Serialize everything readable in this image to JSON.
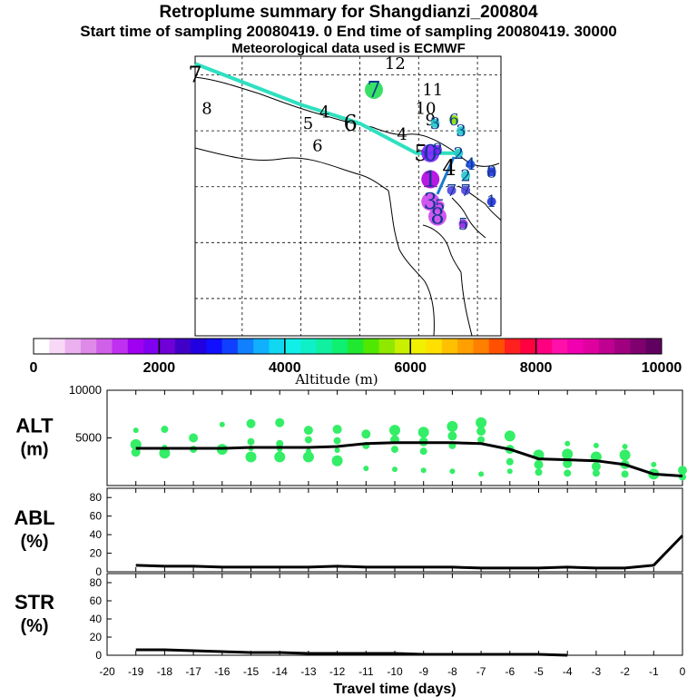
{
  "header": {
    "title": "Retroplume summary for Shangdianzi_200804",
    "subtitle": "Start time of sampling 20080419.    0     End time of sampling 20080419. 30000",
    "met_line": "Meteorological data used is ECMWF"
  },
  "colors": {
    "trajectory": "#2fe0c0",
    "trajectory_end": "#1a7ad0",
    "alt_dots": "#33ee66",
    "line": "#000000"
  },
  "chart_data": [
    {
      "type": "map",
      "title": "Retroplume trajectory map",
      "labels": [
        {
          "text": "7",
          "lon": -4.0,
          "lat": 6.0,
          "color": "#000000",
          "size": 2
        },
        {
          "text": "12",
          "lon": 4.5,
          "lat": 6.3,
          "color": "#000000",
          "size": 1
        },
        {
          "text": "7",
          "lon": 3.6,
          "lat": 5.6,
          "color": "#22dd55",
          "size": 2
        },
        {
          "text": "11",
          "lon": 6.1,
          "lat": 5.6,
          "color": "#000000",
          "size": 1
        },
        {
          "text": "8",
          "lon": -3.5,
          "lat": 5.1,
          "color": "#000000",
          "size": 1
        },
        {
          "text": "10",
          "lon": 5.8,
          "lat": 5.1,
          "color": "#000000",
          "size": 1
        },
        {
          "text": "4",
          "lon": 1.5,
          "lat": 5.0,
          "color": "#000000",
          "size": 1
        },
        {
          "text": "5",
          "lon": 0.8,
          "lat": 4.7,
          "color": "#000000",
          "size": 1
        },
        {
          "text": "6",
          "lon": 2.6,
          "lat": 4.7,
          "color": "#000000",
          "size": 2
        },
        {
          "text": "9",
          "lon": 6.0,
          "lat": 4.8,
          "color": "#000000",
          "size": 1
        },
        {
          "text": "3",
          "lon": 6.2,
          "lat": 4.7,
          "color": "#20c8c8",
          "size": 1
        },
        {
          "text": "6",
          "lon": 7.0,
          "lat": 4.8,
          "color": "#88dd00",
          "size": 1
        },
        {
          "text": "4",
          "lon": 4.8,
          "lat": 4.4,
          "color": "#000000",
          "size": 1
        },
        {
          "text": "3",
          "lon": 7.3,
          "lat": 4.5,
          "color": "#20c8c8",
          "size": 1
        },
        {
          "text": "6",
          "lon": 1.2,
          "lat": 4.1,
          "color": "#000000",
          "size": 1
        },
        {
          "text": "5",
          "lon": 5.6,
          "lat": 3.9,
          "color": "#000000",
          "size": 2
        },
        {
          "text": "0",
          "lon": 6.0,
          "lat": 3.9,
          "color": "#7b1fff",
          "size": 2
        },
        {
          "text": "8",
          "lon": 6.3,
          "lat": 4.0,
          "color": "#7b1fff",
          "size": 1
        },
        {
          "text": "2",
          "lon": 7.2,
          "lat": 3.9,
          "color": "#20c8c8",
          "size": 1
        },
        {
          "text": "4",
          "lon": 6.8,
          "lat": 3.5,
          "color": "#000000",
          "size": 2
        },
        {
          "text": "4",
          "lon": 7.7,
          "lat": 3.6,
          "color": "#2050ff",
          "size": 1
        },
        {
          "text": "2",
          "lon": 7.5,
          "lat": 3.3,
          "color": "#20c8c8",
          "size": 1
        },
        {
          "text": "8",
          "lon": 8.6,
          "lat": 3.4,
          "color": "#2030e0",
          "size": 1
        },
        {
          "text": "1",
          "lon": 6.0,
          "lat": 3.2,
          "color": "#b000e0",
          "size": 2
        },
        {
          "text": "7",
          "lon": 6.9,
          "lat": 2.9,
          "color": "#5040e0",
          "size": 1
        },
        {
          "text": "7",
          "lon": 7.5,
          "lat": 2.9,
          "color": "#5040e0",
          "size": 1
        },
        {
          "text": "3",
          "lon": 6.0,
          "lat": 2.6,
          "color": "#cc44ee",
          "size": 2
        },
        {
          "text": "5",
          "lon": 6.4,
          "lat": 2.5,
          "color": "#cc44ee",
          "size": 1
        },
        {
          "text": "1",
          "lon": 8.6,
          "lat": 2.6,
          "color": "#2030e0",
          "size": 1
        },
        {
          "text": "8",
          "lon": 6.3,
          "lat": 2.2,
          "color": "#cc44ee",
          "size": 2
        },
        {
          "text": "5",
          "lon": 7.4,
          "lat": 2.0,
          "color": "#9020e0",
          "size": 1
        }
      ],
      "trajectory": [
        {
          "lon": -4.0,
          "lat": 6.3
        },
        {
          "lon": 0.5,
          "lat": 5.2
        },
        {
          "lon": 3.0,
          "lat": 4.7
        },
        {
          "lon": 5.4,
          "lat": 3.9
        },
        {
          "lon": 6.6,
          "lat": 3.9
        },
        {
          "lon": 7.3,
          "lat": 3.9
        }
      ],
      "trajectory_tail": [
        {
          "lon": 7.0,
          "lat": 3.8
        },
        {
          "lon": 6.3,
          "lat": 2.8
        }
      ],
      "colorbar": {
        "label": "Altitude (m)",
        "min": 0,
        "max": 10000,
        "ticks": [
          0,
          2000,
          4000,
          6000,
          8000,
          10000
        ],
        "colors": [
          "#ffffff",
          "#f7d8f7",
          "#eab0f0",
          "#df8ae8",
          "#d060e8",
          "#c030f0",
          "#a000f0",
          "#8000f0",
          "#7000d8",
          "#4000c8",
          "#2000e0",
          "#1010ff",
          "#1040ff",
          "#1080ff",
          "#10b0ff",
          "#10d8f0",
          "#10f0e8",
          "#10f0c8",
          "#10f0a0",
          "#10f070",
          "#20e830",
          "#50e800",
          "#90e800",
          "#c8f000",
          "#f0f000",
          "#ffe000",
          "#ffc000",
          "#ffa000",
          "#ff8000",
          "#ff5000",
          "#ff2020",
          "#ff0040",
          "#ff0080",
          "#ff10a8",
          "#f000b0",
          "#e000a0",
          "#c00090",
          "#a00080",
          "#800070",
          "#600060"
        ]
      }
    },
    {
      "type": "scatter",
      "title": "ALT",
      "ylabel": [
        "ALT",
        "(m)"
      ],
      "x_range": [
        -20,
        0
      ],
      "ylim": [
        0,
        10000
      ],
      "yticks": [
        5000,
        10000
      ],
      "mean_line": {
        "x": [
          0,
          -1,
          -2,
          -3,
          -4,
          -5,
          -6,
          -7,
          -8,
          -9,
          -10,
          -11,
          -12,
          -13,
          -14,
          -15,
          -16,
          -17,
          -18,
          -19
        ],
        "y": [
          1000,
          1200,
          2200,
          2600,
          2700,
          2800,
          3800,
          4400,
          4500,
          4500,
          4500,
          4400,
          4100,
          4000,
          4000,
          4000,
          3900,
          3900,
          3900,
          3900
        ]
      },
      "points": [
        {
          "x": -19,
          "y": 5800
        },
        {
          "x": -19,
          "y": 4300
        },
        {
          "x": -19,
          "y": 3500
        },
        {
          "x": -18,
          "y": 5900
        },
        {
          "x": -18,
          "y": 4000
        },
        {
          "x": -18,
          "y": 3400
        },
        {
          "x": -17,
          "y": 5000
        },
        {
          "x": -17,
          "y": 3800
        },
        {
          "x": -16,
          "y": 6400
        },
        {
          "x": -16,
          "y": 3800
        },
        {
          "x": -15,
          "y": 6500
        },
        {
          "x": -15,
          "y": 4600
        },
        {
          "x": -15,
          "y": 3900
        },
        {
          "x": -15,
          "y": 3000
        },
        {
          "x": -14,
          "y": 6600
        },
        {
          "x": -14,
          "y": 4400
        },
        {
          "x": -14,
          "y": 3800
        },
        {
          "x": -14,
          "y": 3000
        },
        {
          "x": -13,
          "y": 5800
        },
        {
          "x": -13,
          "y": 4800
        },
        {
          "x": -13,
          "y": 3600
        },
        {
          "x": -13,
          "y": 3000
        },
        {
          "x": -12,
          "y": 5900
        },
        {
          "x": -12,
          "y": 4700
        },
        {
          "x": -12,
          "y": 3700
        },
        {
          "x": -12,
          "y": 2600
        },
        {
          "x": -11,
          "y": 5400
        },
        {
          "x": -11,
          "y": 4200
        },
        {
          "x": -11,
          "y": 1800
        },
        {
          "x": -10,
          "y": 5800
        },
        {
          "x": -10,
          "y": 4800
        },
        {
          "x": -10,
          "y": 3800
        },
        {
          "x": -10,
          "y": 1700
        },
        {
          "x": -9,
          "y": 5600
        },
        {
          "x": -9,
          "y": 4600
        },
        {
          "x": -9,
          "y": 3600
        },
        {
          "x": -9,
          "y": 1600
        },
        {
          "x": -8,
          "y": 6200
        },
        {
          "x": -8,
          "y": 5200
        },
        {
          "x": -8,
          "y": 4200
        },
        {
          "x": -8,
          "y": 1500
        },
        {
          "x": -7,
          "y": 6600
        },
        {
          "x": -7,
          "y": 5700
        },
        {
          "x": -7,
          "y": 4800
        },
        {
          "x": -7,
          "y": 1200
        },
        {
          "x": -6,
          "y": 5200
        },
        {
          "x": -6,
          "y": 3800
        },
        {
          "x": -6,
          "y": 2500
        },
        {
          "x": -6,
          "y": 1500
        },
        {
          "x": -5,
          "y": 3200
        },
        {
          "x": -5,
          "y": 2200
        },
        {
          "x": -5,
          "y": 1400
        },
        {
          "x": -4,
          "y": 4400
        },
        {
          "x": -4,
          "y": 3300
        },
        {
          "x": -4,
          "y": 2300
        },
        {
          "x": -4,
          "y": 1300
        },
        {
          "x": -3,
          "y": 4200
        },
        {
          "x": -3,
          "y": 3000
        },
        {
          "x": -3,
          "y": 2000
        },
        {
          "x": -3,
          "y": 1300
        },
        {
          "x": -2,
          "y": 4100
        },
        {
          "x": -2,
          "y": 3200
        },
        {
          "x": -2,
          "y": 2200
        },
        {
          "x": -2,
          "y": 1200
        },
        {
          "x": -1,
          "y": 2200
        },
        {
          "x": -1,
          "y": 1200
        },
        {
          "x": 0,
          "y": 1600
        },
        {
          "x": 0,
          "y": 900
        }
      ]
    },
    {
      "type": "line",
      "title": "ABL",
      "ylabel": [
        "ABL",
        "(%)"
      ],
      "x_range": [
        -20,
        0
      ],
      "ylim": [
        0,
        90
      ],
      "yticks": [
        0,
        20,
        40,
        60,
        80
      ],
      "x": [
        -19,
        -18,
        -17,
        -16,
        -15,
        -14,
        -13,
        -12,
        -11,
        -10,
        -9,
        -8,
        -7,
        -6,
        -5,
        -4,
        -3,
        -2,
        -1,
        0
      ],
      "y": [
        7,
        6,
        6,
        5,
        5,
        5,
        5,
        6,
        5,
        5,
        5,
        5,
        4,
        4,
        4,
        5,
        4,
        4,
        7,
        39
      ]
    },
    {
      "type": "line",
      "title": "STR",
      "ylabel": [
        "STR",
        "(%)"
      ],
      "xlabel": "Travel time (days)",
      "x_range": [
        -20,
        0
      ],
      "ylim": [
        0,
        90
      ],
      "yticks": [
        0,
        20,
        40,
        60,
        80
      ],
      "xticks": [
        -20,
        -19,
        -18,
        -17,
        -16,
        -15,
        -14,
        -13,
        -12,
        -11,
        -10,
        -9,
        -8,
        -7,
        -6,
        -5,
        -4,
        -3,
        -2,
        -1,
        0
      ],
      "x": [
        -19,
        -18,
        -17,
        -16,
        -15,
        -14,
        -13,
        -12,
        -11,
        -10,
        -9,
        -8,
        -7,
        -6,
        -5,
        -4
      ],
      "y": [
        6,
        6,
        5,
        4,
        3,
        3,
        2,
        2,
        2,
        2,
        1,
        1,
        1,
        1,
        1,
        0
      ]
    }
  ]
}
